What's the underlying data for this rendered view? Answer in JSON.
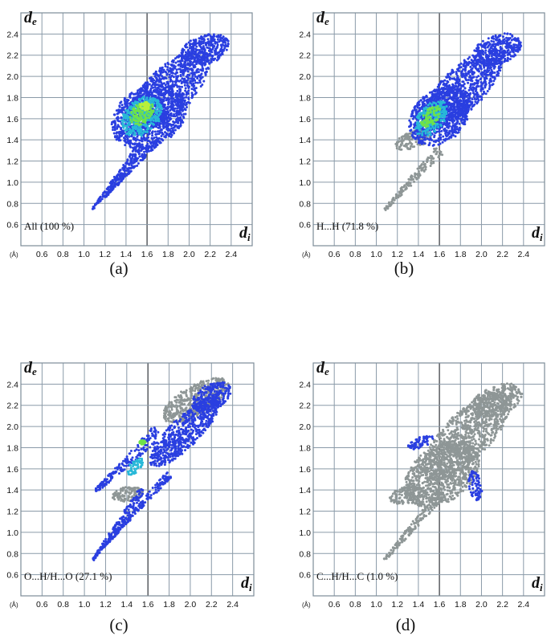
{
  "colors": {
    "grey": "#8e9696",
    "blue": "#2a3fe0",
    "blue_mid": "#1f78e8",
    "cyan": "#28b8d8",
    "green": "#6fe24a",
    "yellow_green": "#b8ef3a"
  },
  "chart_data": [
    {
      "type": "heatmap",
      "panel_label": "(a)",
      "subset_label": "All (100 %)",
      "percentage": 100,
      "xlabel_main": "d",
      "xlabel_sub": "i",
      "ylabel_main": "d",
      "ylabel_sub": "e",
      "unit_label": "(Å)",
      "xlim": [
        0.4,
        2.6
      ],
      "ylim": [
        0.4,
        2.6
      ],
      "x_ticks": [
        "0.6",
        "0.8",
        "1.0",
        "1.2",
        "1.4",
        "1.6",
        "1.8",
        "2.0",
        "2.2",
        "2.4"
      ],
      "y_ticks": [
        "0.6",
        "0.8",
        "1.0",
        "1.2",
        "1.4",
        "1.6",
        "1.8",
        "2.0",
        "2.2",
        "2.4"
      ],
      "grid": true,
      "regions": [
        {
          "shape": "blob",
          "color": "blue",
          "cx": 1.8,
          "cy": 1.85,
          "rx": 0.52,
          "ry": 0.22,
          "angle": 45
        },
        {
          "shape": "blob",
          "color": "blue",
          "cx": 1.62,
          "cy": 1.62,
          "rx": 0.38,
          "ry": 0.28,
          "angle": 30
        },
        {
          "shape": "blob",
          "color": "blue",
          "cx": 2.15,
          "cy": 2.25,
          "rx": 0.24,
          "ry": 0.14,
          "angle": 20
        },
        {
          "shape": "spike",
          "color": "blue",
          "from": [
            1.08,
            0.74
          ],
          "to": [
            1.55,
            1.35
          ],
          "width": 0.04
        },
        {
          "shape": "spike",
          "color": "blue",
          "from": [
            1.2,
            0.86
          ],
          "to": [
            1.7,
            1.4
          ],
          "width": 0.035
        },
        {
          "shape": "blob",
          "color": "cyan",
          "cx": 1.55,
          "cy": 1.62,
          "rx": 0.22,
          "ry": 0.16,
          "angle": 45
        },
        {
          "shape": "blob",
          "color": "green",
          "cx": 1.55,
          "cy": 1.65,
          "rx": 0.13,
          "ry": 0.09,
          "angle": 45
        },
        {
          "shape": "blob",
          "color": "yellow_green",
          "cx": 1.58,
          "cy": 1.72,
          "rx": 0.05,
          "ry": 0.04,
          "angle": 0
        }
      ]
    },
    {
      "type": "heatmap",
      "panel_label": "(b)",
      "subset_label": "H...H (71.8 %)",
      "percentage": 71.8,
      "xlabel_main": "d",
      "xlabel_sub": "i",
      "ylabel_main": "d",
      "ylabel_sub": "e",
      "unit_label": "(Å)",
      "xlim": [
        0.4,
        2.6
      ],
      "ylim": [
        0.4,
        2.6
      ],
      "x_ticks": [
        "0.6",
        "0.8",
        "1.0",
        "1.2",
        "1.4",
        "1.6",
        "1.8",
        "2.0",
        "2.2",
        "2.4"
      ],
      "y_ticks": [
        "0.6",
        "0.8",
        "1.0",
        "1.2",
        "1.4",
        "1.6",
        "1.8",
        "2.0",
        "2.2",
        "2.4"
      ],
      "grid": true,
      "regions": [
        {
          "shape": "spike",
          "color": "grey",
          "from": [
            1.08,
            0.74
          ],
          "to": [
            1.6,
            1.3
          ],
          "width": 0.05
        },
        {
          "shape": "blob",
          "color": "grey",
          "cx": 1.35,
          "cy": 1.4,
          "rx": 0.18,
          "ry": 0.08,
          "angle": 20
        },
        {
          "shape": "blob",
          "color": "blue",
          "cx": 1.82,
          "cy": 1.88,
          "rx": 0.5,
          "ry": 0.2,
          "angle": 45
        },
        {
          "shape": "blob",
          "color": "blue",
          "cx": 1.6,
          "cy": 1.62,
          "rx": 0.32,
          "ry": 0.24,
          "angle": 40
        },
        {
          "shape": "blob",
          "color": "blue",
          "cx": 2.15,
          "cy": 2.25,
          "rx": 0.24,
          "ry": 0.14,
          "angle": 20
        },
        {
          "shape": "blob",
          "color": "cyan",
          "cx": 1.52,
          "cy": 1.6,
          "rx": 0.2,
          "ry": 0.12,
          "angle": 50
        },
        {
          "shape": "blob",
          "color": "green",
          "cx": 1.52,
          "cy": 1.62,
          "rx": 0.12,
          "ry": 0.07,
          "angle": 50
        }
      ]
    },
    {
      "type": "heatmap",
      "panel_label": "(c)",
      "subset_label": "O...H/H...O (27.1 %)",
      "percentage": 27.1,
      "xlabel_main": "d",
      "xlabel_sub": "i",
      "ylabel_main": "d",
      "ylabel_sub": "e",
      "unit_label": "(Å)",
      "xlim": [
        0.4,
        2.6
      ],
      "ylim": [
        0.4,
        2.6
      ],
      "x_ticks": [
        "0.6",
        "0.8",
        "1.0",
        "1.2",
        "1.4",
        "1.6",
        "1.8",
        "2.0",
        "2.2",
        "2.4"
      ],
      "y_ticks": [
        "0.6",
        "0.8",
        "1.0",
        "1.2",
        "1.4",
        "1.6",
        "1.8",
        "2.0",
        "2.2",
        "2.4"
      ],
      "grid": true,
      "regions": [
        {
          "shape": "blob",
          "color": "grey",
          "cx": 1.4,
          "cy": 1.36,
          "rx": 0.16,
          "ry": 0.07,
          "angle": 10
        },
        {
          "shape": "blob",
          "color": "grey",
          "cx": 2.05,
          "cy": 2.25,
          "rx": 0.35,
          "ry": 0.14,
          "angle": 30
        },
        {
          "shape": "spike",
          "color": "blue",
          "from": [
            1.08,
            0.74
          ],
          "to": [
            1.55,
            1.4
          ],
          "width": 0.04
        },
        {
          "shape": "spike",
          "color": "blue",
          "from": [
            1.18,
            0.86
          ],
          "to": [
            1.8,
            1.55
          ],
          "width": 0.035
        },
        {
          "shape": "spike",
          "color": "blue",
          "from": [
            1.1,
            1.38
          ],
          "to": [
            1.7,
            1.95
          ],
          "width": 0.07
        },
        {
          "shape": "blob",
          "color": "blue",
          "cx": 1.95,
          "cy": 1.95,
          "rx": 0.45,
          "ry": 0.14,
          "angle": 45
        },
        {
          "shape": "blob",
          "color": "blue",
          "cx": 2.2,
          "cy": 2.28,
          "rx": 0.2,
          "ry": 0.12,
          "angle": 30
        },
        {
          "shape": "blob",
          "color": "cyan",
          "cx": 1.48,
          "cy": 1.62,
          "rx": 0.1,
          "ry": 0.05,
          "angle": 45
        },
        {
          "shape": "blob",
          "color": "green",
          "cx": 1.55,
          "cy": 1.85,
          "rx": 0.03,
          "ry": 0.02,
          "angle": 0
        }
      ]
    },
    {
      "type": "heatmap",
      "panel_label": "(d)",
      "subset_label": "C...H/H...C (1.0 %)",
      "percentage": 1.0,
      "xlabel_main": "d",
      "xlabel_sub": "i",
      "ylabel_main": "d",
      "ylabel_sub": "e",
      "unit_label": "(Å)",
      "xlim": [
        0.4,
        2.6
      ],
      "ylim": [
        0.4,
        2.6
      ],
      "x_ticks": [
        "0.6",
        "0.8",
        "1.0",
        "1.2",
        "1.4",
        "1.6",
        "1.8",
        "2.0",
        "2.2",
        "2.4"
      ],
      "y_ticks": [
        "0.6",
        "0.8",
        "1.0",
        "1.2",
        "1.4",
        "1.6",
        "1.8",
        "2.0",
        "2.2",
        "2.4"
      ],
      "grid": true,
      "regions": [
        {
          "shape": "spike",
          "color": "grey",
          "from": [
            1.08,
            0.74
          ],
          "to": [
            1.6,
            1.35
          ],
          "width": 0.05
        },
        {
          "shape": "blob",
          "color": "grey",
          "cx": 1.62,
          "cy": 1.55,
          "rx": 0.4,
          "ry": 0.26,
          "angle": 35
        },
        {
          "shape": "blob",
          "color": "grey",
          "cx": 1.85,
          "cy": 1.9,
          "rx": 0.55,
          "ry": 0.22,
          "angle": 45
        },
        {
          "shape": "blob",
          "color": "grey",
          "cx": 2.15,
          "cy": 2.25,
          "rx": 0.25,
          "ry": 0.14,
          "angle": 20
        },
        {
          "shape": "blob",
          "color": "grey",
          "cx": 1.3,
          "cy": 1.35,
          "rx": 0.18,
          "ry": 0.08,
          "angle": 10
        },
        {
          "shape": "blob",
          "color": "blue",
          "cx": 1.42,
          "cy": 1.85,
          "rx": 0.13,
          "ry": 0.05,
          "angle": 20
        },
        {
          "shape": "blob",
          "color": "blue",
          "cx": 1.94,
          "cy": 1.44,
          "rx": 0.06,
          "ry": 0.14,
          "angle": 10
        }
      ]
    }
  ]
}
